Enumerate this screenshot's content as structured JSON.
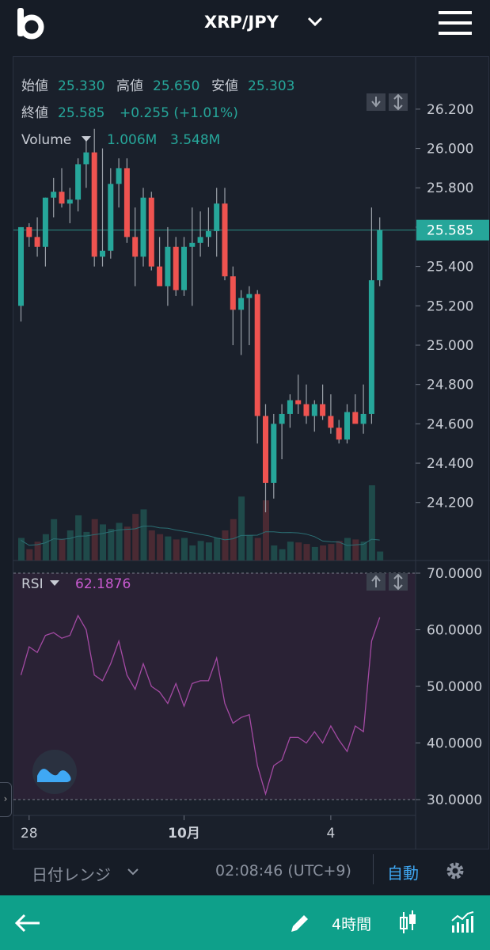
{
  "header": {
    "pair": "XRP/JPY"
  },
  "ohlc": {
    "open_label": "始値",
    "open": "25.330",
    "high_label": "高値",
    "high": "25.650",
    "low_label": "安値",
    "low": "25.303",
    "close_label": "終値",
    "close": "25.585",
    "change": "+0.255 (+1.01%)"
  },
  "volume": {
    "label": "Volume",
    "v1": "1.006M",
    "v2": "3.548M"
  },
  "rsi": {
    "label": "RSI",
    "value": "62.1876"
  },
  "footer": {
    "date_range": "日付レンジ",
    "time": "02:08:46 (UTC+9)",
    "auto": "自動"
  },
  "nav": {
    "interval": "4時間"
  },
  "colors": {
    "up": "#26a69a",
    "down": "#ef5350",
    "rsi_line": "#a34aa3",
    "accent": "#3fa8f4",
    "nav_bg": "#0ea08a"
  },
  "chart_data": [
    {
      "type": "candlestick",
      "price_axis": [
        "26.200",
        "26.000",
        "25.800",
        "25.600",
        "25.400",
        "25.200",
        "25.000",
        "24.800",
        "24.600",
        "24.400",
        "24.200"
      ],
      "ylim": [
        24.05,
        26.28
      ],
      "last_price": "25.585",
      "x_ticks": [
        {
          "label": "28",
          "i": 1
        },
        {
          "label": "10月",
          "i": 20
        },
        {
          "label": "4",
          "i": 38
        }
      ],
      "candles": [
        [
          25.2,
          25.6,
          25.12,
          25.6
        ],
        [
          25.6,
          25.62,
          25.5,
          25.55
        ],
        [
          25.55,
          25.65,
          25.45,
          25.5
        ],
        [
          25.5,
          25.75,
          25.4,
          25.75
        ],
        [
          25.75,
          25.85,
          25.65,
          25.78
        ],
        [
          25.78,
          25.9,
          25.7,
          25.72
        ],
        [
          25.72,
          25.8,
          25.62,
          25.74
        ],
        [
          25.74,
          25.95,
          25.68,
          25.92
        ],
        [
          25.92,
          26.05,
          25.8,
          25.98
        ],
        [
          25.98,
          26.1,
          25.4,
          25.45
        ],
        [
          25.45,
          26.0,
          25.4,
          25.48
        ],
        [
          25.48,
          25.9,
          25.44,
          25.82
        ],
        [
          25.82,
          25.95,
          25.7,
          25.9
        ],
        [
          25.9,
          25.95,
          25.52,
          25.55
        ],
        [
          25.55,
          25.7,
          25.3,
          25.45
        ],
        [
          25.45,
          25.8,
          25.4,
          25.75
        ],
        [
          25.75,
          25.78,
          25.38,
          25.4
        ],
        [
          25.4,
          25.55,
          25.32,
          25.3
        ],
        [
          25.3,
          25.6,
          25.2,
          25.5
        ],
        [
          25.5,
          25.55,
          25.25,
          25.28
        ],
        [
          25.28,
          25.55,
          25.25,
          25.5
        ],
        [
          25.5,
          25.7,
          25.2,
          25.52
        ],
        [
          25.52,
          25.68,
          25.45,
          25.55
        ],
        [
          25.55,
          25.7,
          25.5,
          25.58
        ],
        [
          25.58,
          25.8,
          25.45,
          25.72
        ],
        [
          25.72,
          25.8,
          25.33,
          25.35
        ],
        [
          25.35,
          25.4,
          25.0,
          25.18
        ],
        [
          25.18,
          25.28,
          24.95,
          25.24
        ],
        [
          25.24,
          25.3,
          25.0,
          25.26
        ],
        [
          25.26,
          25.28,
          24.5,
          24.64
        ],
        [
          24.64,
          24.7,
          24.15,
          24.3
        ],
        [
          24.3,
          24.65,
          24.22,
          24.6
        ],
        [
          24.6,
          24.7,
          24.42,
          24.65
        ],
        [
          24.65,
          24.75,
          24.58,
          24.72
        ],
        [
          24.72,
          24.85,
          24.65,
          24.7
        ],
        [
          24.7,
          24.8,
          24.6,
          24.64
        ],
        [
          24.64,
          24.72,
          24.56,
          24.7
        ],
        [
          24.7,
          24.8,
          24.62,
          24.64
        ],
        [
          24.64,
          24.75,
          24.55,
          24.58
        ],
        [
          24.58,
          24.62,
          24.5,
          24.52
        ],
        [
          24.52,
          24.7,
          24.5,
          24.66
        ],
        [
          24.66,
          24.75,
          24.62,
          24.6
        ],
        [
          24.6,
          24.8,
          24.55,
          24.65
        ],
        [
          24.65,
          25.7,
          24.6,
          25.33
        ],
        [
          25.33,
          25.65,
          25.3,
          25.585
        ]
      ],
      "volume_bars": [
        0.3,
        0.15,
        0.25,
        0.35,
        0.55,
        0.28,
        0.4,
        0.6,
        0.38,
        0.55,
        0.48,
        0.42,
        0.5,
        0.45,
        0.62,
        0.68,
        0.4,
        0.35,
        0.32,
        0.28,
        0.3,
        0.2,
        0.26,
        0.24,
        0.3,
        0.4,
        0.55,
        0.85,
        0.34,
        0.3,
        0.8,
        0.2,
        0.15,
        0.25,
        0.24,
        0.22,
        0.18,
        0.2,
        0.22,
        0.26,
        0.3,
        0.28,
        0.25,
        1.0,
        0.12
      ]
    },
    {
      "type": "line",
      "name": "RSI",
      "rsi_axis": [
        "70.0000",
        "60.0000",
        "50.0000",
        "40.0000",
        "30.0000"
      ],
      "ylim": [
        28,
        72
      ],
      "values": [
        52,
        57,
        56,
        59,
        59.5,
        58.5,
        59,
        62.5,
        60,
        52,
        51,
        54,
        58,
        52,
        49.5,
        54,
        50,
        49,
        47,
        50.5,
        46.5,
        50.5,
        51,
        51,
        55,
        47,
        43.5,
        44.5,
        45,
        36,
        31,
        36,
        37,
        41,
        41,
        40,
        42,
        40,
        43,
        40.5,
        38.5,
        43,
        42,
        58,
        62.2
      ]
    }
  ]
}
